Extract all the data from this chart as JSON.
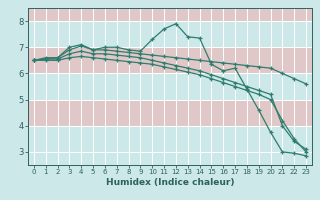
{
  "xlabel": "Humidex (Indice chaleur)",
  "background_color": "#cce8e8",
  "plot_bg_color": "#cce8e8",
  "grid_color": "#ffffff",
  "grid_color2": "#f0c0c0",
  "line_color": "#2e7d6e",
  "spine_color": "#2e6060",
  "tick_color": "#2e6060",
  "xlim": [
    -0.5,
    23.5
  ],
  "ylim": [
    2.5,
    8.5
  ],
  "yticks": [
    3,
    4,
    5,
    6,
    7,
    8
  ],
  "xticks": [
    0,
    1,
    2,
    3,
    4,
    5,
    6,
    7,
    8,
    9,
    10,
    11,
    12,
    13,
    14,
    15,
    16,
    17,
    18,
    19,
    20,
    21,
    22,
    23
  ],
  "series": [
    {
      "x": [
        0,
        1,
        2,
        3,
        4,
        5,
        6,
        7,
        8,
        9,
        10,
        11,
        12,
        13,
        14,
        15,
        16,
        17,
        18,
        19,
        20,
        21,
        22,
        23
      ],
      "y": [
        6.5,
        6.6,
        6.6,
        7.0,
        7.1,
        6.9,
        7.0,
        7.0,
        6.9,
        6.85,
        7.3,
        7.7,
        7.9,
        7.4,
        7.35,
        6.35,
        6.1,
        6.2,
        5.4,
        4.6,
        3.75,
        3.0,
        2.95,
        2.85
      ]
    },
    {
      "x": [
        0,
        1,
        2,
        3,
        4,
        5,
        6,
        7,
        8,
        9,
        10,
        11,
        12,
        13,
        14,
        15,
        16,
        17,
        18,
        19,
        20,
        21,
        22,
        23
      ],
      "y": [
        6.5,
        6.55,
        6.6,
        6.9,
        7.05,
        6.9,
        6.9,
        6.85,
        6.8,
        6.75,
        6.7,
        6.65,
        6.6,
        6.55,
        6.5,
        6.45,
        6.4,
        6.35,
        6.3,
        6.25,
        6.2,
        6.0,
        5.8,
        5.6
      ]
    },
    {
      "x": [
        0,
        1,
        2,
        3,
        4,
        5,
        6,
        7,
        8,
        9,
        10,
        11,
        12,
        13,
        14,
        15,
        16,
        17,
        18,
        19,
        20,
        21,
        22,
        23
      ],
      "y": [
        6.5,
        6.55,
        6.55,
        6.75,
        6.85,
        6.75,
        6.75,
        6.7,
        6.65,
        6.6,
        6.5,
        6.4,
        6.3,
        6.2,
        6.1,
        5.95,
        5.8,
        5.65,
        5.5,
        5.35,
        5.2,
        4.0,
        3.4,
        3.1
      ]
    },
    {
      "x": [
        0,
        1,
        2,
        3,
        4,
        5,
        6,
        7,
        8,
        9,
        10,
        11,
        12,
        13,
        14,
        15,
        16,
        17,
        18,
        19,
        20,
        21,
        22,
        23
      ],
      "y": [
        6.5,
        6.5,
        6.5,
        6.6,
        6.65,
        6.6,
        6.55,
        6.5,
        6.45,
        6.4,
        6.35,
        6.25,
        6.15,
        6.05,
        5.95,
        5.8,
        5.65,
        5.5,
        5.35,
        5.2,
        5.0,
        4.2,
        3.5,
        3.0
      ]
    }
  ]
}
